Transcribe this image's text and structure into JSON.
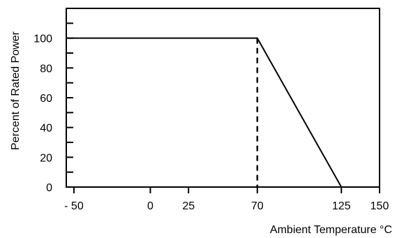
{
  "chart_data": {
    "type": "line",
    "title": "",
    "xlabel": "Ambient Temperature °C",
    "ylabel": "Percent of Rated Power",
    "xlim": [
      -55,
      150
    ],
    "ylim": [
      0,
      120
    ],
    "x_ticks": [
      -50,
      0,
      25,
      70,
      125,
      150
    ],
    "x_tick_labels": [
      "- 50",
      "0",
      "25",
      "70",
      "125",
      "150"
    ],
    "y_ticks": [
      0,
      20,
      40,
      60,
      80,
      100
    ],
    "y_tick_labels": [
      "0",
      "20",
      "40",
      "60",
      "80",
      "100"
    ],
    "y_minor_ticks": [
      10,
      30,
      50,
      70,
      90,
      110
    ],
    "grid": false,
    "series": [
      {
        "x": [
          -55,
          70,
          125
        ],
        "y": [
          100,
          100,
          0
        ],
        "style": "solid",
        "color": "#000000"
      }
    ],
    "annotations": [
      {
        "type": "dashed-vertical-line",
        "x": 70,
        "y_from": 0,
        "y_to": 100,
        "color": "#000000"
      }
    ]
  }
}
